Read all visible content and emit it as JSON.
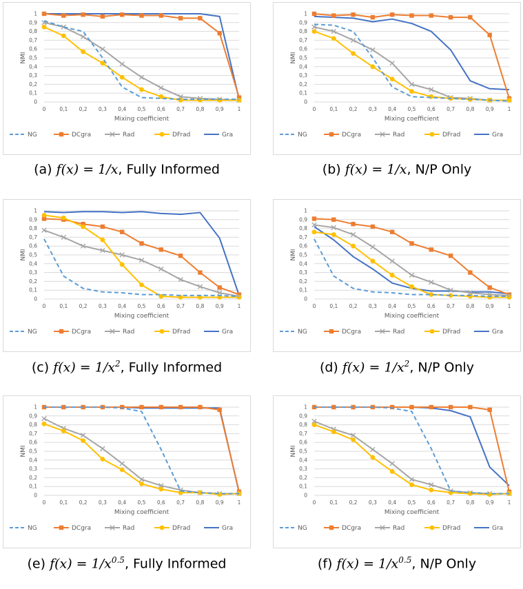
{
  "chart_data": [
    {
      "type": "line",
      "caption_tag": "(a)",
      "caption_func": "f(x) = 1/x",
      "caption_mode": "Fully Informed",
      "xlabel": "Mixing coefficient",
      "ylabel": "NMI",
      "ylim": [
        0,
        1
      ],
      "x": [
        "0",
        "0,1",
        "0,2",
        "0,3",
        "0,4",
        "0,5",
        "0,6",
        "0,7",
        "0,8",
        "0,9",
        "1"
      ],
      "yticks": [
        "0",
        "0,1",
        "0,2",
        "0,3",
        "0,4",
        "0,5",
        "0,6",
        "0,7",
        "0,8",
        "0,9",
        "1"
      ],
      "legend_position": "bottom",
      "series": [
        {
          "name": "NG",
          "values": [
            0.92,
            0.85,
            0.8,
            0.5,
            0.17,
            0.05,
            0.04,
            0.03,
            0.03,
            0.03,
            0.03
          ]
        },
        {
          "name": "DCgra",
          "values": [
            1.0,
            0.98,
            0.99,
            0.97,
            0.99,
            0.98,
            0.98,
            0.95,
            0.95,
            0.78,
            0.05
          ]
        },
        {
          "name": "Rad",
          "values": [
            0.9,
            0.85,
            0.74,
            0.6,
            0.43,
            0.28,
            0.16,
            0.06,
            0.04,
            0.03,
            0.02
          ]
        },
        {
          "name": "DFrad",
          "values": [
            0.85,
            0.75,
            0.57,
            0.44,
            0.28,
            0.14,
            0.06,
            0.02,
            0.02,
            0.02,
            0.02
          ]
        },
        {
          "name": "Gra",
          "values": [
            1.0,
            1.0,
            1.0,
            1.0,
            1.0,
            1.0,
            1.0,
            1.0,
            1.0,
            0.97,
            0.03
          ]
        }
      ]
    },
    {
      "type": "line",
      "caption_tag": "(b)",
      "caption_func": "f(x) = 1/x",
      "caption_mode": "N/P Only",
      "xlabel": "Mixing coefficient",
      "ylabel": "NMI",
      "ylim": [
        0,
        1
      ],
      "x": [
        "0",
        "0,1",
        "0,2",
        "0,3",
        "0,4",
        "0,5",
        "0,6",
        "0,7",
        "0,8",
        "0,9",
        "1"
      ],
      "yticks": [
        "0",
        "0,1",
        "0,2",
        "0,3",
        "0,4",
        "0,5",
        "0,6",
        "0,7",
        "0,8",
        "0,9",
        "1"
      ],
      "legend_position": "bottom",
      "series": [
        {
          "name": "NG",
          "values": [
            0.88,
            0.87,
            0.8,
            0.5,
            0.17,
            0.06,
            0.05,
            0.04,
            0.03,
            0.02,
            0.01
          ]
        },
        {
          "name": "DCgra",
          "values": [
            1.0,
            0.98,
            0.99,
            0.96,
            0.99,
            0.98,
            0.98,
            0.96,
            0.96,
            0.76,
            0.04
          ]
        },
        {
          "name": "Rad",
          "values": [
            0.85,
            0.8,
            0.7,
            0.59,
            0.44,
            0.2,
            0.14,
            0.05,
            0.04,
            0.02,
            0.02
          ]
        },
        {
          "name": "DFrad",
          "values": [
            0.8,
            0.72,
            0.55,
            0.4,
            0.26,
            0.12,
            0.06,
            0.04,
            0.03,
            0.02,
            0.02
          ]
        },
        {
          "name": "Gra",
          "values": [
            0.97,
            0.96,
            0.95,
            0.91,
            0.94,
            0.89,
            0.8,
            0.59,
            0.24,
            0.15,
            0.14
          ]
        }
      ]
    },
    {
      "type": "line",
      "caption_tag": "(c)",
      "caption_func": "f(x) = 1/x",
      "caption_exp": "2",
      "caption_mode": "Fully Informed",
      "xlabel": "Mixing coefficient",
      "ylabel": "NMI",
      "ylim": [
        0,
        1
      ],
      "x": [
        "0",
        "0,1",
        "0,2",
        "0,3",
        "0,4",
        "0,5",
        "0,6",
        "0,7",
        "0,8",
        "0,9",
        "1"
      ],
      "yticks": [
        "0",
        "0,1",
        "0,2",
        "0,3",
        "0,4",
        "0,5",
        "0,6",
        "0,7",
        "0,8",
        "0,9",
        "1"
      ],
      "legend_position": "bottom",
      "series": [
        {
          "name": "NG",
          "values": [
            0.68,
            0.26,
            0.12,
            0.08,
            0.07,
            0.05,
            0.05,
            0.04,
            0.04,
            0.04,
            0.03
          ]
        },
        {
          "name": "DCgra",
          "values": [
            0.91,
            0.9,
            0.85,
            0.82,
            0.76,
            0.63,
            0.56,
            0.49,
            0.3,
            0.13,
            0.05
          ]
        },
        {
          "name": "Rad",
          "values": [
            0.78,
            0.7,
            0.6,
            0.55,
            0.5,
            0.44,
            0.34,
            0.22,
            0.14,
            0.07,
            0.03
          ]
        },
        {
          "name": "DFrad",
          "values": [
            0.95,
            0.92,
            0.82,
            0.67,
            0.39,
            0.16,
            0.03,
            0.02,
            0.02,
            0.02,
            0.02
          ]
        },
        {
          "name": "Gra",
          "values": [
            0.99,
            0.98,
            0.99,
            0.99,
            0.98,
            0.99,
            0.97,
            0.96,
            0.98,
            0.69,
            0.04
          ]
        }
      ]
    },
    {
      "type": "line",
      "caption_tag": "(d)",
      "caption_func": "f(x) = 1/x",
      "caption_exp": "2",
      "caption_mode": "N/P Only",
      "xlabel": "Mixing coefficient",
      "ylabel": "NMI",
      "ylim": [
        0,
        1
      ],
      "x": [
        "0",
        "0,1",
        "0,2",
        "0,3",
        "0,4",
        "0,5",
        "0,6",
        "0,7",
        "0,8",
        "0,9",
        "1"
      ],
      "yticks": [
        "0",
        "0,1",
        "0,2",
        "0,3",
        "0,4",
        "0,5",
        "0,6",
        "0,7",
        "0,8",
        "0,9",
        "1"
      ],
      "legend_position": "bottom",
      "series": [
        {
          "name": "NG",
          "values": [
            0.68,
            0.26,
            0.12,
            0.08,
            0.07,
            0.05,
            0.05,
            0.04,
            0.04,
            0.03,
            0.03
          ]
        },
        {
          "name": "DCgra",
          "values": [
            0.91,
            0.9,
            0.85,
            0.82,
            0.76,
            0.63,
            0.56,
            0.49,
            0.3,
            0.13,
            0.05
          ]
        },
        {
          "name": "Rad",
          "values": [
            0.84,
            0.81,
            0.73,
            0.59,
            0.43,
            0.27,
            0.19,
            0.1,
            0.07,
            0.05,
            0.04
          ]
        },
        {
          "name": "DFrad",
          "values": [
            0.76,
            0.73,
            0.6,
            0.43,
            0.27,
            0.14,
            0.05,
            0.04,
            0.03,
            0.02,
            0.02
          ]
        },
        {
          "name": "Gra",
          "values": [
            0.82,
            0.67,
            0.48,
            0.34,
            0.18,
            0.12,
            0.09,
            0.09,
            0.08,
            0.08,
            0.06
          ]
        }
      ]
    },
    {
      "type": "line",
      "caption_tag": "(e)",
      "caption_func": "f(x) = 1/x",
      "caption_exp": "0.5",
      "caption_mode": "Fully Informed",
      "xlabel": "Mixing coefficient",
      "ylabel": "NMI",
      "ylim": [
        0,
        1
      ],
      "x": [
        "0",
        "0,1",
        "0,2",
        "0,3",
        "0,4",
        "0,5",
        "0,6",
        "0,7",
        "0,8",
        "0,9",
        "1"
      ],
      "yticks": [
        "0",
        "0,1",
        "0,2",
        "0,3",
        "0,4",
        "0,5",
        "0,6",
        "0,7",
        "0,8",
        "0,9",
        "1"
      ],
      "legend_position": "bottom",
      "series": [
        {
          "name": "NG",
          "values": [
            1.0,
            1.0,
            1.0,
            1.0,
            0.99,
            0.95,
            0.52,
            0.05,
            0.03,
            0.02,
            0.02
          ]
        },
        {
          "name": "DCgra",
          "values": [
            1.0,
            1.0,
            1.0,
            1.0,
            1.0,
            1.0,
            1.0,
            1.0,
            1.0,
            0.97,
            0.04
          ]
        },
        {
          "name": "Rad",
          "values": [
            0.87,
            0.76,
            0.68,
            0.53,
            0.36,
            0.18,
            0.11,
            0.06,
            0.03,
            0.02,
            0.02
          ]
        },
        {
          "name": "DFrad",
          "values": [
            0.81,
            0.73,
            0.62,
            0.41,
            0.29,
            0.13,
            0.07,
            0.03,
            0.03,
            0.01,
            0.02
          ]
        },
        {
          "name": "Gra",
          "values": [
            1.0,
            1.0,
            1.0,
            1.0,
            1.0,
            0.99,
            0.99,
            0.99,
            0.99,
            0.99,
            0.03
          ]
        }
      ]
    },
    {
      "type": "line",
      "caption_tag": "(f)",
      "caption_func": "f(x) = 1/x",
      "caption_exp": "0.5",
      "caption_mode": "N/P Only",
      "xlabel": "Mixing coefficient",
      "ylabel": "NMI",
      "ylim": [
        0,
        1
      ],
      "x": [
        "0",
        "0,1",
        "0,2",
        "0,3",
        "0,4",
        "0,5",
        "0,6",
        "0,7",
        "0,8",
        "0,9",
        "1"
      ],
      "yticks": [
        "0",
        "0,1",
        "0,2",
        "0,3",
        "0,4",
        "0,5",
        "0,6",
        "0,7",
        "0,8",
        "0,9",
        "1"
      ],
      "legend_position": "bottom",
      "series": [
        {
          "name": "NG",
          "values": [
            1.0,
            1.0,
            1.0,
            1.0,
            0.99,
            0.95,
            0.53,
            0.05,
            0.03,
            0.02,
            0.02
          ]
        },
        {
          "name": "DCgra",
          "values": [
            1.0,
            1.0,
            1.0,
            1.0,
            1.0,
            1.0,
            1.0,
            1.0,
            1.0,
            0.97,
            0.04
          ]
        },
        {
          "name": "Rad",
          "values": [
            0.84,
            0.75,
            0.68,
            0.52,
            0.36,
            0.18,
            0.12,
            0.05,
            0.03,
            0.02,
            0.02
          ]
        },
        {
          "name": "DFrad",
          "values": [
            0.8,
            0.72,
            0.63,
            0.43,
            0.27,
            0.12,
            0.06,
            0.03,
            0.02,
            0.01,
            0.02
          ]
        },
        {
          "name": "Gra",
          "values": [
            1.0,
            1.0,
            1.0,
            1.0,
            1.0,
            1.0,
            0.99,
            0.96,
            0.89,
            0.32,
            0.11
          ]
        }
      ]
    }
  ],
  "series_style": {
    "NG": {
      "color": "#5b9bd5",
      "dash": "6,4",
      "marker": "none"
    },
    "DCgra": {
      "color": "#ed7d31",
      "dash": "",
      "marker": "square"
    },
    "Rad": {
      "color": "#a5a5a5",
      "dash": "",
      "marker": "x"
    },
    "DFrad": {
      "color": "#ffc000",
      "dash": "",
      "marker": "circle"
    },
    "Gra": {
      "color": "#4472c4",
      "dash": "",
      "marker": "none"
    }
  }
}
